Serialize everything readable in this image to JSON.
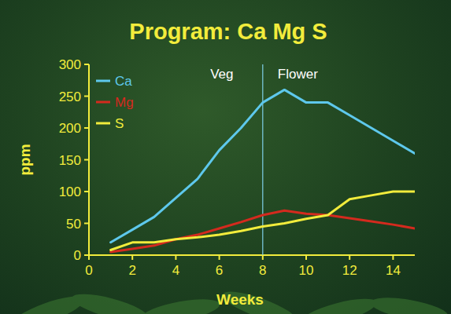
{
  "chart_data": {
    "type": "line",
    "title": "Program: Ca Mg S",
    "x_label": "Weeks",
    "y_label": "ppm",
    "x": [
      1,
      2,
      3,
      4,
      5,
      6,
      7,
      8,
      9,
      10,
      11,
      12,
      13,
      14,
      15
    ],
    "series": [
      {
        "name": "Ca",
        "color": "#5ec8ec",
        "values": [
          20,
          40,
          60,
          90,
          120,
          165,
          200,
          240,
          260,
          240,
          240,
          220,
          200,
          180,
          160
        ]
      },
      {
        "name": "Mg",
        "color": "#d42a1e",
        "values": [
          5,
          10,
          15,
          25,
          32,
          42,
          52,
          63,
          70,
          65,
          63,
          58,
          53,
          48,
          42
        ]
      },
      {
        "name": "S",
        "color": "#f2ec3c",
        "values": [
          8,
          20,
          20,
          25,
          28,
          32,
          38,
          45,
          50,
          57,
          63,
          88,
          94,
          100,
          100
        ]
      }
    ],
    "vline": 8,
    "annotations": [
      "Veg",
      "Flower"
    ],
    "xlim": [
      0,
      15
    ],
    "xticks": [
      0,
      2,
      4,
      6,
      8,
      10,
      12,
      14
    ],
    "ylim": [
      0,
      300
    ],
    "yticks": [
      0,
      50,
      100,
      150,
      200,
      250,
      300
    ],
    "grid": false,
    "legend": "upper left"
  }
}
